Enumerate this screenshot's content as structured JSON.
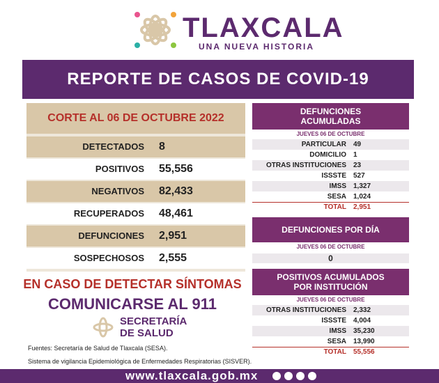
{
  "header": {
    "title": "TLAXCALA",
    "subtitle": "UNA NUEVA HISTORIA"
  },
  "banner": "REPORTE DE CASOS DE COVID-19",
  "summary": {
    "date": "CORTE AL 06 DE OCTUBRE 2022",
    "rows": [
      [
        "DETECTADOS",
        "8"
      ],
      [
        "POSITIVOS",
        "55,556"
      ],
      [
        "NEGATIVOS",
        "82,433"
      ],
      [
        "RECUPERADOS",
        "48,461"
      ],
      [
        "DEFUNCIONES",
        "2,951"
      ],
      [
        "SOSPECHOSOS",
        "2,555"
      ]
    ]
  },
  "deaths_total": {
    "title": "DEFUNCIONES ACUMULADAS",
    "date": "JUEVES 06 DE OCTUBRE",
    "rows": [
      [
        "PARTICULAR",
        "49"
      ],
      [
        "DOMICILIO",
        "1"
      ],
      [
        "OTRAS INSTITUCIONES",
        "23"
      ],
      [
        "ISSSTE",
        "527"
      ],
      [
        "IMSS",
        "1,327"
      ],
      [
        "SESA",
        "1,024"
      ]
    ],
    "total": [
      "TOTAL",
      "2,951"
    ]
  },
  "deaths_day": {
    "title": "DEFUNCIONES POR DÍA",
    "date": "JUEVES 06 DE OCTUBRE",
    "value": "0"
  },
  "positives": {
    "title": "POSITIVOS ACUMULADOS POR INSTITUCIÓN",
    "date": "JUEVES 06 DE OCTUBRE",
    "rows": [
      [
        "OTRAS INSTITUCIONES",
        "2,332"
      ],
      [
        "ISSSTE",
        "4,004"
      ],
      [
        "IMSS",
        "35,230"
      ],
      [
        "SESA",
        "13,990"
      ]
    ],
    "total": [
      "TOTAL",
      "55,556"
    ]
  },
  "alert": {
    "line1": "EN CASO DE DETECTAR SÍNTOMAS",
    "line2": "COMUNICARSE AL 911"
  },
  "secretaria": {
    "line1": "SECRETARÍA",
    "line2": "DE SALUD"
  },
  "sources": {
    "line1": "Fuentes:  Secretaría de Salud de Tlaxcala (SESA).",
    "line2": "Sistema de vigilancia Epidemiológica de Enfermedades Respiratorias (SISVER)."
  },
  "footer": {
    "url": "www.tlaxcala.gob.mx"
  }
}
